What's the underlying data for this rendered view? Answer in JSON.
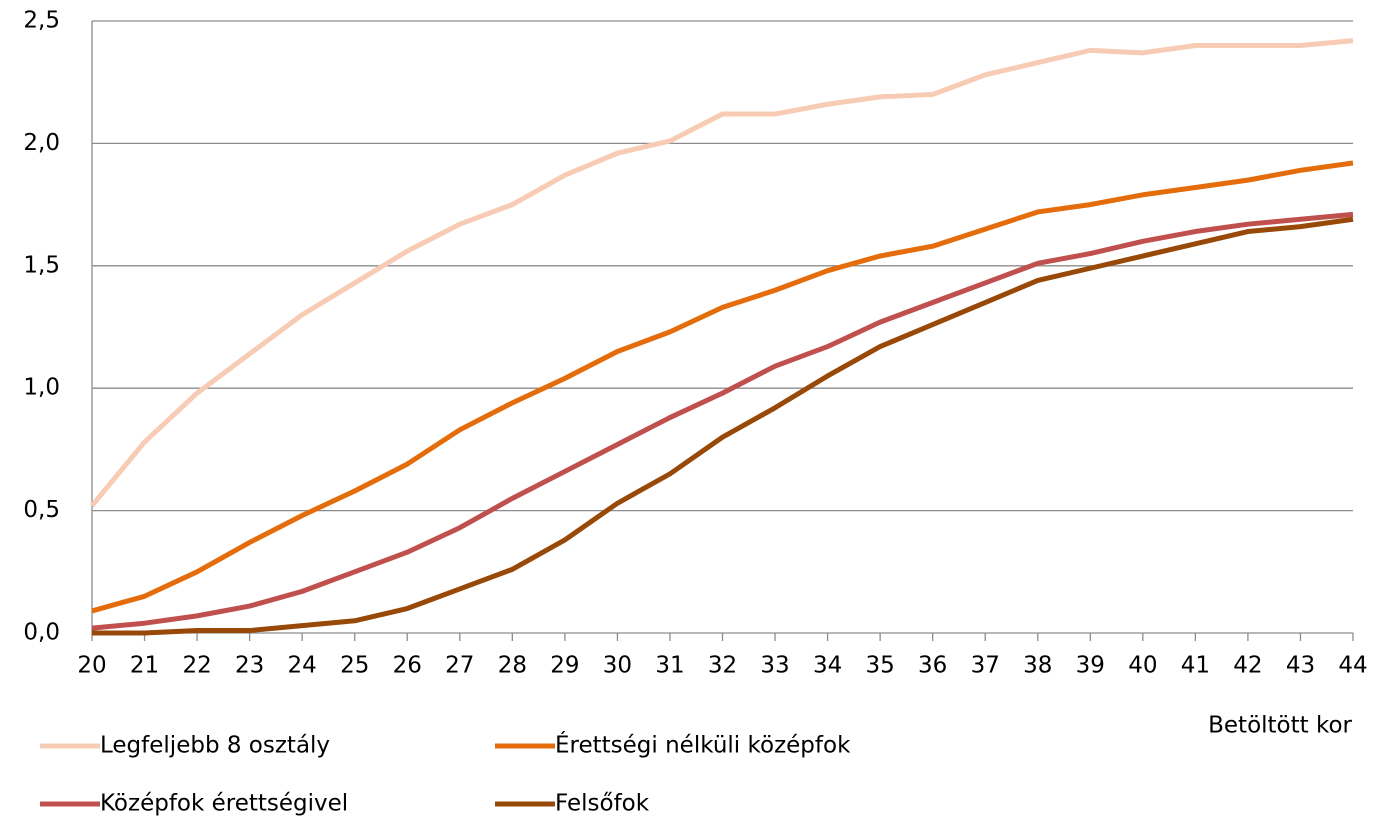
{
  "chart_data": {
    "type": "line",
    "x_label": "Betöltött kor",
    "categories": [
      "20",
      "21",
      "22",
      "23",
      "24",
      "25",
      "26",
      "27",
      "28",
      "29",
      "30",
      "31",
      "32",
      "33",
      "34",
      "35",
      "36",
      "37",
      "38",
      "39",
      "40",
      "41",
      "42",
      "43",
      "44"
    ],
    "series": [
      {
        "name": "Legfeljebb 8 osztály",
        "color": "#f8cbb4",
        "values": [
          0.52,
          0.78,
          0.98,
          1.14,
          1.3,
          1.43,
          1.56,
          1.67,
          1.75,
          1.87,
          1.96,
          2.01,
          2.12,
          2.12,
          2.16,
          2.19,
          2.2,
          2.28,
          2.33,
          2.38,
          2.37,
          2.4,
          2.4,
          2.4,
          2.42
        ]
      },
      {
        "name": "Érettségi nélküli középfok",
        "color": "#e46c0a",
        "values": [
          0.09,
          0.15,
          0.25,
          0.37,
          0.48,
          0.58,
          0.69,
          0.83,
          0.94,
          1.04,
          1.15,
          1.23,
          1.33,
          1.4,
          1.48,
          1.54,
          1.58,
          1.65,
          1.72,
          1.75,
          1.79,
          1.82,
          1.85,
          1.89,
          1.92
        ]
      },
      {
        "name": "Középfok érettségivel",
        "color": "#c0504d",
        "values": [
          0.02,
          0.04,
          0.07,
          0.11,
          0.17,
          0.25,
          0.33,
          0.43,
          0.55,
          0.66,
          0.77,
          0.88,
          0.98,
          1.09,
          1.17,
          1.27,
          1.35,
          1.43,
          1.51,
          1.55,
          1.6,
          1.64,
          1.67,
          1.69,
          1.71
        ]
      },
      {
        "name": "Felsőfok",
        "color": "#984807",
        "values": [
          0.0,
          0.0,
          0.01,
          0.01,
          0.03,
          0.05,
          0.1,
          0.18,
          0.26,
          0.38,
          0.53,
          0.65,
          0.8,
          0.92,
          1.05,
          1.17,
          1.26,
          1.35,
          1.44,
          1.49,
          1.54,
          1.59,
          1.64,
          1.66,
          1.69
        ]
      }
    ],
    "ylim": [
      0,
      2.5
    ],
    "yticks": [
      {
        "value": 0,
        "label": "0,0"
      },
      {
        "value": 0.5,
        "label": "0,5"
      },
      {
        "value": 1,
        "label": "1,0"
      },
      {
        "value": 1.5,
        "label": "1,5"
      },
      {
        "value": 2,
        "label": "2,0"
      },
      {
        "value": 2.5,
        "label": "2,5"
      }
    ],
    "grid": true
  }
}
